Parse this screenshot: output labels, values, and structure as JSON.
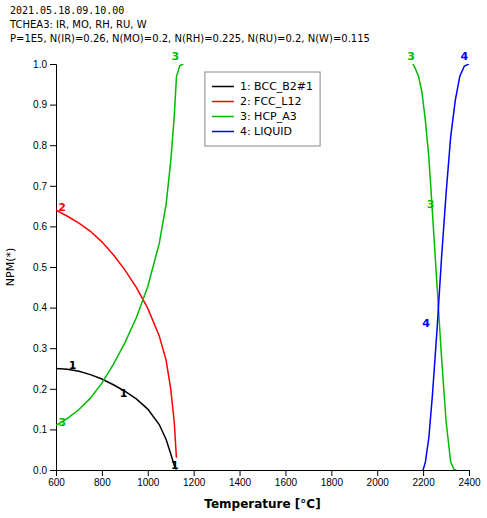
{
  "chart_data": {
    "type": "line",
    "title": "2021.05.18.09.10.00",
    "subtitle": [
      "TCHEA3: IR, MO, RH, RU, W",
      "P=1E5, N(IR)=0.26, N(MO)=0.2, N(RH)=0.225, N(RU)=0.2, N(W)=0.115"
    ],
    "x_label": "Temperature [°C]",
    "y_label": "NPM(*)",
    "xlim": [
      600,
      2400
    ],
    "ylim": [
      0.0,
      1.0
    ],
    "xticks": [
      600,
      800,
      1000,
      1200,
      1400,
      1600,
      1800,
      2000,
      2200,
      2400
    ],
    "yticks": [
      {
        "value": 0.0,
        "label": "0.0"
      },
      0.1,
      0.2,
      0.3,
      0.4,
      0.5,
      0.6,
      0.7,
      0.8,
      0.9,
      {
        "value": 1.0,
        "label": "1.0"
      }
    ],
    "grid": false,
    "legend": "top",
    "series": [
      {
        "name": "1: BCC_B2#1",
        "color": "#000000",
        "x": [
          600,
          650,
          700,
          750,
          800,
          850,
          900,
          950,
          1000,
          1050,
          1080,
          1100,
          1115,
          1125
        ],
        "values": [
          0.25,
          0.248,
          0.243,
          0.235,
          0.224,
          0.21,
          0.194,
          0.175,
          0.15,
          0.112,
          0.075,
          0.04,
          0.012,
          0.001
        ]
      },
      {
        "name": "2: FCC_L12",
        "color": "#ff0000",
        "x": [
          600,
          650,
          700,
          750,
          800,
          850,
          900,
          950,
          1000,
          1050,
          1080,
          1100,
          1115,
          1125
        ],
        "values": [
          0.64,
          0.625,
          0.608,
          0.588,
          0.562,
          0.53,
          0.493,
          0.45,
          0.398,
          0.33,
          0.27,
          0.2,
          0.12,
          0.03
        ]
      },
      {
        "name": "3: HCP_A3",
        "color": "#00bb00",
        "x": [
          600,
          650,
          700,
          750,
          800,
          850,
          900,
          950,
          1000,
          1050,
          1080,
          1100,
          1115,
          1125,
          1140,
          1155
        ],
        "values": [
          0.11,
          0.127,
          0.149,
          0.177,
          0.214,
          0.26,
          0.313,
          0.375,
          0.452,
          0.558,
          0.655,
          0.76,
          0.868,
          0.969,
          0.996,
          1.0
        ]
      },
      {
        "name": "3: HCP_A3",
        "color": "#00bb00",
        "x": [
          2155,
          2165,
          2180,
          2195,
          2210,
          2225,
          2240,
          2260,
          2280,
          2300,
          2320,
          2335,
          2345
        ],
        "values": [
          1.0,
          0.99,
          0.97,
          0.93,
          0.86,
          0.77,
          0.64,
          0.46,
          0.28,
          0.12,
          0.02,
          0.001,
          0.0
        ]
      },
      {
        "name": "4: LIQUID",
        "color": "#0000ff",
        "x": [
          2200,
          2210,
          2225,
          2240,
          2260,
          2280,
          2300,
          2320,
          2340,
          2360,
          2380,
          2400
        ],
        "values": [
          0.0,
          0.02,
          0.08,
          0.18,
          0.34,
          0.52,
          0.68,
          0.82,
          0.91,
          0.97,
          0.995,
          1.0
        ]
      }
    ],
    "annotations": [
      {
        "text": "1",
        "x": 672,
        "y": 0.258,
        "color": "#000000"
      },
      {
        "text": "1",
        "x": 895,
        "y": 0.188,
        "color": "#000000"
      },
      {
        "text": "1",
        "x": 1118,
        "y": 0.012,
        "color": "#000000"
      },
      {
        "text": "2",
        "x": 626,
        "y": 0.647,
        "color": "#ff0000"
      },
      {
        "text": "3",
        "x": 628,
        "y": 0.118,
        "color": "#00bb00"
      },
      {
        "text": "3",
        "x": 1120,
        "y": 1.018,
        "color": "#00bb00"
      },
      {
        "text": "3",
        "x": 2148,
        "y": 1.018,
        "color": "#00bb00"
      },
      {
        "text": "3",
        "x": 2232,
        "y": 0.655,
        "color": "#00bb00"
      },
      {
        "text": "4",
        "x": 2380,
        "y": 1.018,
        "color": "#0000ff"
      },
      {
        "text": "4",
        "x": 2213,
        "y": 0.36,
        "color": "#0000ff"
      }
    ]
  }
}
